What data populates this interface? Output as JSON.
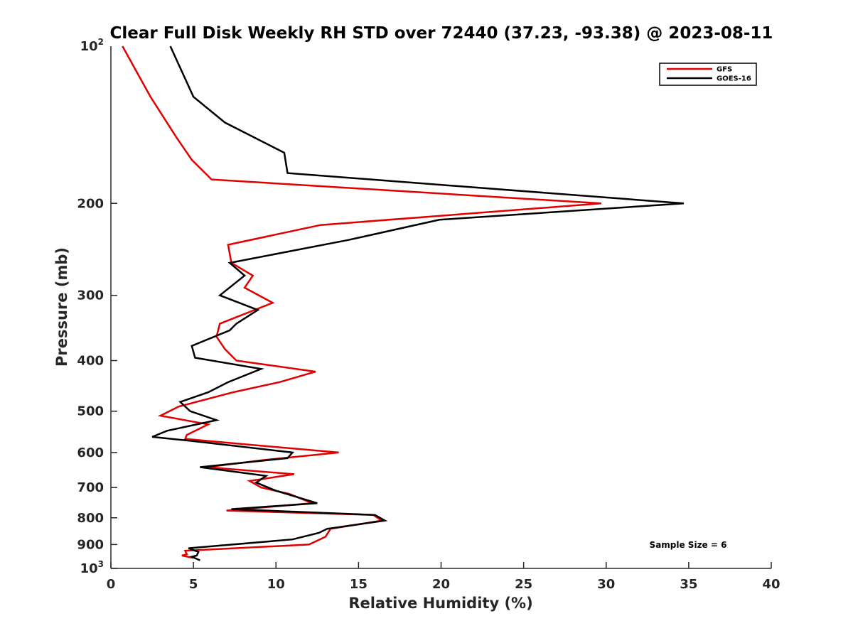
{
  "chart_data": {
    "type": "line",
    "title": "Clear Full Disk Weekly RH STD over 72440 (37.23, -93.38) @ 2023-08-11",
    "xlabel": "Relative Humidity (%)",
    "ylabel": "Pressure (mb)",
    "xlim": [
      0,
      40
    ],
    "ylim": [
      100,
      1000
    ],
    "y_scale": "log",
    "y_reversed": true,
    "x_ticks": [
      0,
      5,
      10,
      15,
      20,
      25,
      30,
      35,
      40
    ],
    "x_tick_labels": [
      "0",
      "5",
      "10",
      "15",
      "20",
      "25",
      "30",
      "35",
      "40"
    ],
    "y_ticks": [
      200,
      300,
      400,
      500,
      600,
      700,
      800,
      900
    ],
    "y_tick_labels": [
      "200",
      "300",
      "400",
      "500",
      "600",
      "700",
      "800",
      "900"
    ],
    "y_end_ticks": {
      "top": {
        "value": 100,
        "base": "10",
        "exp": "2"
      },
      "bottom": {
        "value": 1000,
        "base": "10",
        "exp": "3"
      }
    },
    "grid": false,
    "legend_position": "top-right",
    "annotation": "Sample Size = 6",
    "series": [
      {
        "name": "GFS",
        "color": "#e00000",
        "points": [
          [
            0.7,
            100
          ],
          [
            2.4,
            125
          ],
          [
            4.0,
            150
          ],
          [
            4.9,
            165
          ],
          [
            6.1,
            180
          ],
          [
            29.7,
            200
          ],
          [
            12.7,
            220
          ],
          [
            7.1,
            240
          ],
          [
            7.3,
            260
          ],
          [
            8.6,
            275
          ],
          [
            8.1,
            290
          ],
          [
            9.8,
            310
          ],
          [
            6.6,
            340
          ],
          [
            6.4,
            360
          ],
          [
            6.9,
            380
          ],
          [
            7.6,
            400
          ],
          [
            12.4,
            420
          ],
          [
            10.2,
            440
          ],
          [
            7.4,
            460
          ],
          [
            4.1,
            490
          ],
          [
            3.0,
            510
          ],
          [
            5.9,
            530
          ],
          [
            4.6,
            555
          ],
          [
            4.5,
            565
          ],
          [
            7.2,
            575
          ],
          [
            13.8,
            600
          ],
          [
            9.3,
            620
          ],
          [
            5.8,
            640
          ],
          [
            11.1,
            660
          ],
          [
            8.4,
            680
          ],
          [
            9.1,
            700
          ],
          [
            10.8,
            720
          ],
          [
            12.2,
            750
          ],
          [
            7.0,
            775
          ],
          [
            15.9,
            790
          ],
          [
            16.4,
            810
          ],
          [
            13.3,
            840
          ],
          [
            13.0,
            870
          ],
          [
            12.0,
            900
          ],
          [
            4.5,
            925
          ],
          [
            4.6,
            940
          ],
          [
            4.3,
            945
          ],
          [
            5.0,
            955
          ]
        ]
      },
      {
        "name": "GOES-16",
        "color": "#000000",
        "points": [
          [
            3.6,
            100
          ],
          [
            5.0,
            125
          ],
          [
            6.9,
            140
          ],
          [
            10.5,
            160
          ],
          [
            10.7,
            175
          ],
          [
            34.7,
            200
          ],
          [
            19.9,
            215
          ],
          [
            14.4,
            235
          ],
          [
            7.2,
            260
          ],
          [
            8.1,
            275
          ],
          [
            6.6,
            300
          ],
          [
            8.9,
            320
          ],
          [
            7.6,
            340
          ],
          [
            7.2,
            350
          ],
          [
            4.9,
            375
          ],
          [
            5.1,
            395
          ],
          [
            9.1,
            415
          ],
          [
            7.1,
            440
          ],
          [
            5.9,
            460
          ],
          [
            4.2,
            480
          ],
          [
            4.8,
            500
          ],
          [
            6.4,
            520
          ],
          [
            3.4,
            545
          ],
          [
            2.5,
            560
          ],
          [
            4.9,
            570
          ],
          [
            11.0,
            600
          ],
          [
            10.7,
            615
          ],
          [
            5.4,
            640
          ],
          [
            9.4,
            665
          ],
          [
            8.8,
            685
          ],
          [
            10.0,
            710
          ],
          [
            12.5,
            750
          ],
          [
            7.3,
            770
          ],
          [
            16.0,
            790
          ],
          [
            16.6,
            810
          ],
          [
            13.1,
            840
          ],
          [
            12.6,
            855
          ],
          [
            11.0,
            880
          ],
          [
            4.7,
            915
          ],
          [
            5.3,
            930
          ],
          [
            5.2,
            945
          ],
          [
            4.9,
            950
          ],
          [
            5.4,
            965
          ]
        ]
      }
    ]
  }
}
